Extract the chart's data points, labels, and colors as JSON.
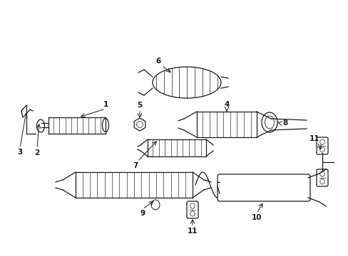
{
  "bg_color": "#ffffff",
  "line_color": "#1a1a1a",
  "figsize": [
    4.89,
    3.6
  ],
  "dpi": 100,
  "xlim": [
    0,
    489
  ],
  "ylim": [
    0,
    360
  ]
}
